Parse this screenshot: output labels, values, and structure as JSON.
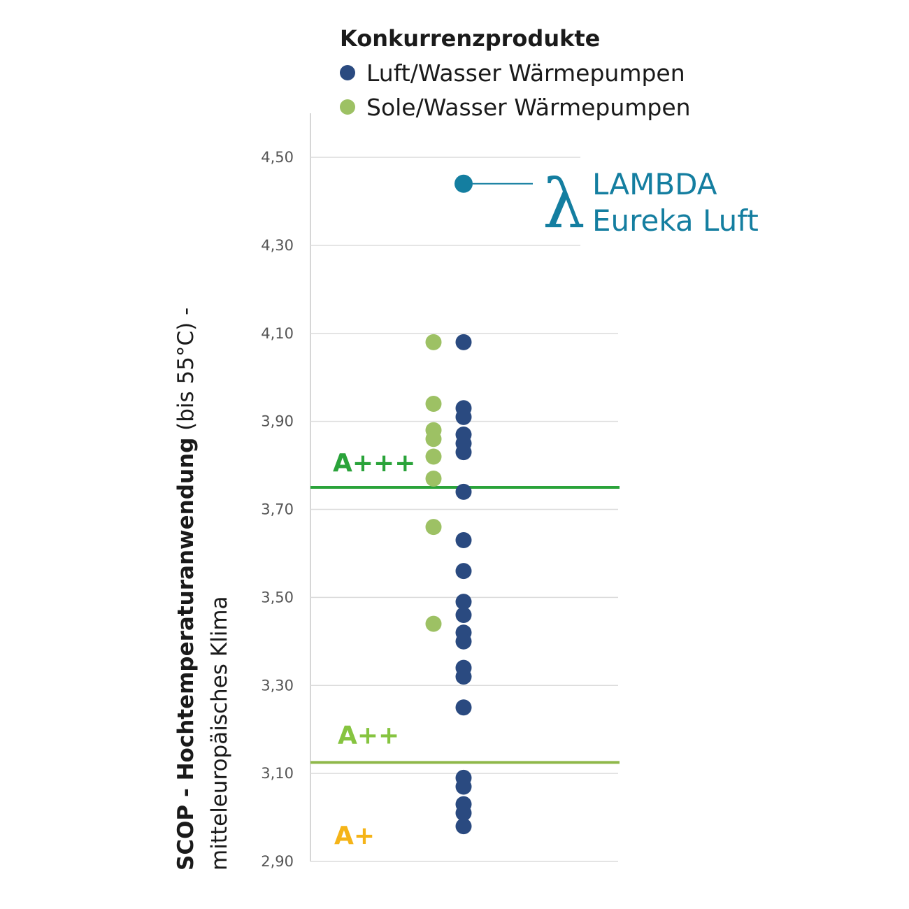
{
  "chart_data": {
    "type": "scatter",
    "title": "",
    "xlabel": "",
    "ylabel": {
      "bold": "SCOP - Hochtemperaturanwendung",
      "normal": " (bis 55°C) -",
      "line2": "mitteleuropäisches Klima"
    },
    "ylim": [
      2.9,
      4.6
    ],
    "yticks": [
      {
        "value": 4.5,
        "label": "4,50"
      },
      {
        "value": 4.3,
        "label": "4,30"
      },
      {
        "value": 4.1,
        "label": "4,10"
      },
      {
        "value": 3.9,
        "label": "3,90"
      },
      {
        "value": 3.7,
        "label": "3,70"
      },
      {
        "value": 3.5,
        "label": "3,50"
      },
      {
        "value": 3.3,
        "label": "3,30"
      },
      {
        "value": 3.1,
        "label": "3,10"
      },
      {
        "value": 2.9,
        "label": "2,90"
      }
    ],
    "grid": true,
    "legend": {
      "title": "Konkurrenzprodukte",
      "placement": "top"
    },
    "series": [
      {
        "name": "Luft/Wasser Wärmepumpen",
        "color": "#2a4a80",
        "values": [
          4.08,
          3.93,
          3.91,
          3.87,
          3.85,
          3.83,
          3.74,
          3.63,
          3.56,
          3.49,
          3.46,
          3.42,
          3.4,
          3.34,
          3.32,
          3.25,
          3.09,
          3.07,
          3.03,
          3.01,
          2.98
        ]
      },
      {
        "name": "Sole/Wasser Wärmepumpen",
        "color": "#9dc164",
        "values": [
          4.08,
          3.94,
          3.88,
          3.86,
          3.82,
          3.77,
          3.66,
          3.44
        ]
      }
    ],
    "highlight": {
      "line1": "LAMBDA",
      "line2": "Eureka Luft",
      "glyph": "λ",
      "value": 4.44,
      "color": "#147ea0"
    },
    "thresholds": [
      {
        "label": "A+++",
        "value": 3.75,
        "color": "#2aa33a"
      },
      {
        "label": "A++",
        "value": 3.125,
        "color": "#8fb84a",
        "label_color": "#86c440"
      }
    ],
    "bands": [
      {
        "label": "A+",
        "color": "#f5b418"
      }
    ]
  }
}
